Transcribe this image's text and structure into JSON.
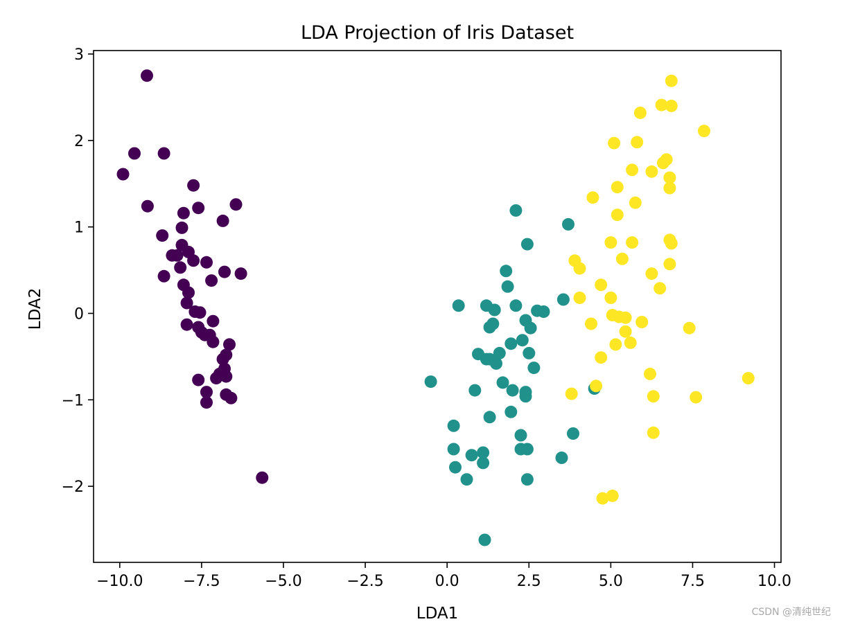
{
  "chart_data": {
    "type": "scatter",
    "title": "LDA Projection of Iris Dataset",
    "xlabel": "LDA1",
    "ylabel": "LDA2",
    "xlim": [
      -10.8,
      10.2
    ],
    "ylim": [
      -2.88,
      3.04
    ],
    "xticks": [
      -10.0,
      -7.5,
      -5.0,
      -2.5,
      0.0,
      2.5,
      5.0,
      7.5,
      10.0
    ],
    "xtick_labels": [
      "−10.0",
      "−7.5",
      "−5.0",
      "−2.5",
      "0.0",
      "2.5",
      "5.0",
      "7.5",
      "10.0"
    ],
    "yticks": [
      -2,
      -1,
      0,
      1,
      2,
      3
    ],
    "ytick_labels": [
      "−2",
      "−1",
      "0",
      "1",
      "2",
      "3"
    ],
    "grid": false,
    "legend": false,
    "series": [
      {
        "color": "#440154",
        "points": [
          [
            -9.17,
            2.75
          ],
          [
            -9.55,
            1.85
          ],
          [
            -8.65,
            1.85
          ],
          [
            -9.9,
            1.61
          ],
          [
            -7.75,
            1.48
          ],
          [
            -9.15,
            1.24
          ],
          [
            -6.45,
            1.26
          ],
          [
            -7.6,
            1.22
          ],
          [
            -8.05,
            1.16
          ],
          [
            -6.85,
            1.07
          ],
          [
            -8.1,
            0.99
          ],
          [
            -8.7,
            0.9
          ],
          [
            -8.1,
            0.79
          ],
          [
            -7.9,
            0.71
          ],
          [
            -8.4,
            0.67
          ],
          [
            -8.25,
            0.67
          ],
          [
            -7.75,
            0.61
          ],
          [
            -7.35,
            0.59
          ],
          [
            -8.15,
            0.53
          ],
          [
            -6.8,
            0.48
          ],
          [
            -6.3,
            0.46
          ],
          [
            -8.65,
            0.43
          ],
          [
            -7.2,
            0.38
          ],
          [
            -8.05,
            0.33
          ],
          [
            -7.9,
            0.24
          ],
          [
            -7.95,
            0.12
          ],
          [
            -7.7,
            0.02
          ],
          [
            -7.55,
            0.01
          ],
          [
            -7.15,
            -0.09
          ],
          [
            -7.95,
            -0.13
          ],
          [
            -7.6,
            -0.16
          ],
          [
            -7.5,
            -0.22
          ],
          [
            -7.4,
            -0.25
          ],
          [
            -7.25,
            -0.25
          ],
          [
            -7.15,
            -0.33
          ],
          [
            -6.65,
            -0.36
          ],
          [
            -6.75,
            -0.48
          ],
          [
            -6.85,
            -0.53
          ],
          [
            -6.8,
            -0.64
          ],
          [
            -6.95,
            -0.7
          ],
          [
            -7.05,
            -0.75
          ],
          [
            -6.75,
            -0.73
          ],
          [
            -7.6,
            -0.77
          ],
          [
            -7.35,
            -0.91
          ],
          [
            -6.75,
            -0.94
          ],
          [
            -6.6,
            -0.98
          ],
          [
            -7.35,
            -1.03
          ],
          [
            -5.65,
            -1.9
          ]
        ]
      },
      {
        "color": "#21918c",
        "points": [
          [
            2.1,
            1.19
          ],
          [
            3.7,
            1.03
          ],
          [
            2.45,
            0.8
          ],
          [
            1.8,
            0.49
          ],
          [
            1.85,
            0.31
          ],
          [
            3.55,
            0.16
          ],
          [
            0.35,
            0.09
          ],
          [
            1.2,
            0.09
          ],
          [
            2.1,
            0.09
          ],
          [
            1.45,
            0.04
          ],
          [
            2.75,
            0.03
          ],
          [
            2.95,
            0.02
          ],
          [
            2.4,
            -0.08
          ],
          [
            1.4,
            -0.12
          ],
          [
            1.3,
            -0.16
          ],
          [
            2.55,
            -0.17
          ],
          [
            2.3,
            -0.31
          ],
          [
            1.95,
            -0.35
          ],
          [
            0.95,
            -0.47
          ],
          [
            1.6,
            -0.46
          ],
          [
            2.5,
            -0.46
          ],
          [
            1.2,
            -0.53
          ],
          [
            1.3,
            -0.53
          ],
          [
            1.5,
            -0.58
          ],
          [
            2.65,
            -0.63
          ],
          [
            -0.5,
            -0.79
          ],
          [
            1.7,
            -0.8
          ],
          [
            2.0,
            -0.89
          ],
          [
            0.85,
            -0.89
          ],
          [
            2.4,
            -0.91
          ],
          [
            2.4,
            -0.96
          ],
          [
            4.5,
            -0.87
          ],
          [
            1.95,
            -1.14
          ],
          [
            1.3,
            -1.2
          ],
          [
            0.2,
            -1.3
          ],
          [
            2.25,
            -1.41
          ],
          [
            3.85,
            -1.39
          ],
          [
            0.2,
            -1.57
          ],
          [
            2.25,
            -1.57
          ],
          [
            2.45,
            -1.57
          ],
          [
            1.1,
            -1.61
          ],
          [
            0.75,
            -1.64
          ],
          [
            3.5,
            -1.67
          ],
          [
            1.1,
            -1.73
          ],
          [
            0.25,
            -1.78
          ],
          [
            0.6,
            -1.92
          ],
          [
            2.45,
            -1.92
          ],
          [
            1.15,
            -2.62
          ]
        ]
      },
      {
        "color": "#fde725",
        "points": [
          [
            6.85,
            2.69
          ],
          [
            5.9,
            2.32
          ],
          [
            6.55,
            2.41
          ],
          [
            6.85,
            2.4
          ],
          [
            7.85,
            2.11
          ],
          [
            5.1,
            1.97
          ],
          [
            5.8,
            1.98
          ],
          [
            6.7,
            1.78
          ],
          [
            6.6,
            1.74
          ],
          [
            5.65,
            1.66
          ],
          [
            6.25,
            1.64
          ],
          [
            6.8,
            1.57
          ],
          [
            5.2,
            1.46
          ],
          [
            6.8,
            1.45
          ],
          [
            4.45,
            1.34
          ],
          [
            5.75,
            1.28
          ],
          [
            5.2,
            1.14
          ],
          [
            5.0,
            0.82
          ],
          [
            5.65,
            0.82
          ],
          [
            6.8,
            0.85
          ],
          [
            6.85,
            0.81
          ],
          [
            5.35,
            0.63
          ],
          [
            3.9,
            0.61
          ],
          [
            4.05,
            0.52
          ],
          [
            6.8,
            0.57
          ],
          [
            6.25,
            0.46
          ],
          [
            4.7,
            0.33
          ],
          [
            6.5,
            0.29
          ],
          [
            4.05,
            0.18
          ],
          [
            5.0,
            0.18
          ],
          [
            5.05,
            -0.02
          ],
          [
            5.25,
            -0.04
          ],
          [
            5.45,
            -0.05
          ],
          [
            5.95,
            -0.1
          ],
          [
            4.4,
            -0.12
          ],
          [
            7.4,
            -0.17
          ],
          [
            5.45,
            -0.21
          ],
          [
            5.6,
            -0.34
          ],
          [
            5.15,
            -0.36
          ],
          [
            4.7,
            -0.51
          ],
          [
            6.2,
            -0.7
          ],
          [
            9.2,
            -0.75
          ],
          [
            4.55,
            -0.84
          ],
          [
            3.8,
            -0.93
          ],
          [
            6.3,
            -0.96
          ],
          [
            7.6,
            -0.97
          ],
          [
            6.3,
            -1.38
          ],
          [
            4.75,
            -2.14
          ],
          [
            5.05,
            -2.11
          ]
        ]
      }
    ]
  },
  "watermark": "CSDN @清纯世纪"
}
